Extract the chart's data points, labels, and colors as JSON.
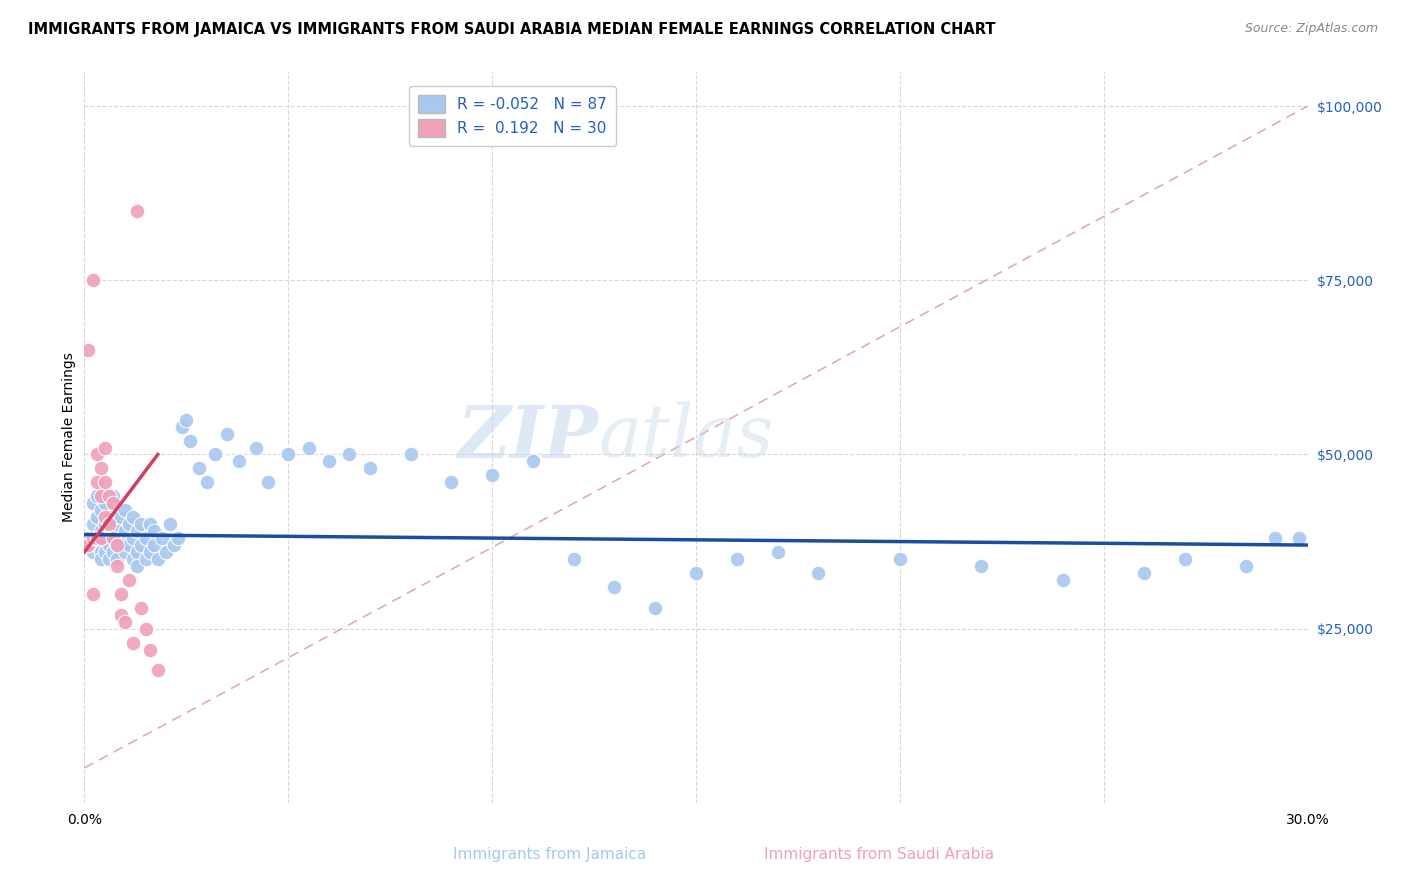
{
  "title": "IMMIGRANTS FROM JAMAICA VS IMMIGRANTS FROM SAUDI ARABIA MEDIAN FEMALE EARNINGS CORRELATION CHART",
  "source": "Source: ZipAtlas.com",
  "xlabel_bottom": [
    "Immigrants from Jamaica",
    "Immigrants from Saudi Arabia"
  ],
  "ylabel": "Median Female Earnings",
  "xlim": [
    0.0,
    0.3
  ],
  "ylim": [
    0,
    105000
  ],
  "yticks": [
    0,
    25000,
    50000,
    75000,
    100000
  ],
  "ytick_labels": [
    "",
    "$25,000",
    "$50,000",
    "$75,000",
    "$100,000"
  ],
  "xticks": [
    0.0,
    0.05,
    0.1,
    0.15,
    0.2,
    0.25,
    0.3
  ],
  "xtick_labels": [
    "0.0%",
    "",
    "",
    "",
    "",
    "",
    "30.0%"
  ],
  "blue_color": "#a8c8f0",
  "pink_color": "#f0a0b8",
  "blue_line_color": "#1a4fa0",
  "pink_line_color": "#d04060",
  "pink_dashed_color": "#e0a0b8",
  "R_blue": -0.052,
  "N_blue": 87,
  "R_pink": 0.192,
  "N_pink": 30,
  "blue_scatter_x": [
    0.001,
    0.002,
    0.002,
    0.002,
    0.003,
    0.003,
    0.003,
    0.003,
    0.004,
    0.004,
    0.004,
    0.004,
    0.005,
    0.005,
    0.005,
    0.005,
    0.006,
    0.006,
    0.006,
    0.007,
    0.007,
    0.007,
    0.007,
    0.008,
    0.008,
    0.008,
    0.009,
    0.009,
    0.01,
    0.01,
    0.01,
    0.011,
    0.011,
    0.012,
    0.012,
    0.012,
    0.013,
    0.013,
    0.013,
    0.014,
    0.014,
    0.015,
    0.015,
    0.016,
    0.016,
    0.017,
    0.017,
    0.018,
    0.019,
    0.02,
    0.021,
    0.022,
    0.023,
    0.024,
    0.025,
    0.026,
    0.028,
    0.03,
    0.032,
    0.035,
    0.038,
    0.042,
    0.045,
    0.05,
    0.055,
    0.06,
    0.065,
    0.07,
    0.08,
    0.09,
    0.1,
    0.11,
    0.12,
    0.13,
    0.14,
    0.15,
    0.16,
    0.17,
    0.18,
    0.2,
    0.22,
    0.24,
    0.26,
    0.27,
    0.285,
    0.292,
    0.298
  ],
  "blue_scatter_y": [
    38000,
    40000,
    43000,
    36000,
    37000,
    41000,
    38000,
    44000,
    36000,
    39000,
    42000,
    35000,
    38000,
    40000,
    36000,
    43000,
    37000,
    41000,
    35000,
    38000,
    40000,
    36000,
    44000,
    37000,
    39000,
    35000,
    38000,
    41000,
    36000,
    39000,
    42000,
    37000,
    40000,
    35000,
    38000,
    41000,
    36000,
    39000,
    34000,
    37000,
    40000,
    35000,
    38000,
    36000,
    40000,
    37000,
    39000,
    35000,
    38000,
    36000,
    40000,
    37000,
    38000,
    54000,
    55000,
    52000,
    48000,
    46000,
    50000,
    53000,
    49000,
    51000,
    46000,
    50000,
    51000,
    49000,
    50000,
    48000,
    50000,
    46000,
    47000,
    49000,
    35000,
    31000,
    28000,
    33000,
    35000,
    36000,
    33000,
    35000,
    34000,
    32000,
    33000,
    35000,
    34000,
    38000,
    38000
  ],
  "pink_scatter_x": [
    0.001,
    0.001,
    0.002,
    0.002,
    0.002,
    0.003,
    0.003,
    0.003,
    0.004,
    0.004,
    0.004,
    0.005,
    0.005,
    0.005,
    0.006,
    0.006,
    0.007,
    0.007,
    0.008,
    0.008,
    0.009,
    0.009,
    0.01,
    0.011,
    0.012,
    0.013,
    0.014,
    0.015,
    0.016,
    0.018
  ],
  "pink_scatter_y": [
    65000,
    37000,
    75000,
    38000,
    30000,
    50000,
    46000,
    38000,
    48000,
    44000,
    38000,
    51000,
    46000,
    41000,
    44000,
    40000,
    43000,
    38000,
    37000,
    34000,
    30000,
    27000,
    26000,
    32000,
    23000,
    85000,
    28000,
    25000,
    22000,
    19000
  ],
  "watermark_zip": "ZIP",
  "watermark_atlas": "atlas",
  "background_color": "#ffffff",
  "grid_color": "#d8d8d8",
  "title_fontsize": 10.5,
  "source_fontsize": 9,
  "tick_fontsize": 10,
  "legend_fontsize": 11
}
